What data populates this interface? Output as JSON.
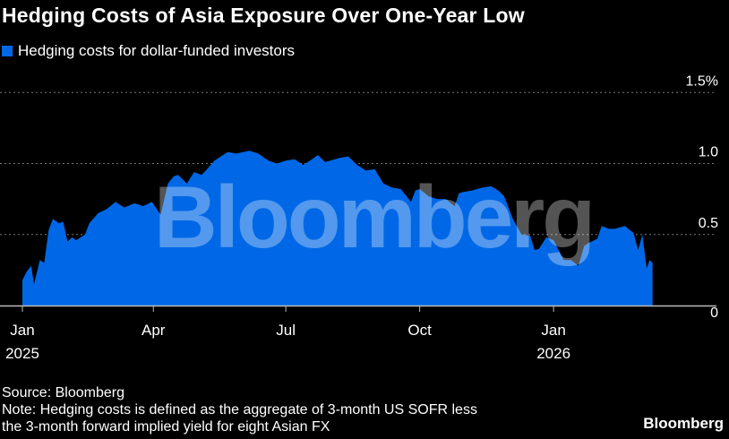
{
  "title": "Hedging Costs of Asia Exposure Over One-Year Low",
  "source": "Source: Bloomberg",
  "note_line1": "Note: Hedging costs is defined as the aggregate of 3-month US SOFR less",
  "note_line2": "the 3-month forward implied yield for eight Asian FX",
  "brand": "Bloomberg",
  "watermark": "Bloomberg",
  "colors": {
    "series": "#0068e6",
    "background": "#000000",
    "text": "#ffffff"
  },
  "chart_data": {
    "type": "area",
    "title": "Hedging Costs of Asia Exposure Over One-Year Low",
    "xlabel": "",
    "ylabel": "",
    "x_unit": "days since 2025-01-01",
    "ylim": [
      0,
      1.5
    ],
    "xlim": [
      0,
      476
    ],
    "grid": true,
    "legend_position": "top-left",
    "y_ticks": [
      {
        "value": 0,
        "label": "0"
      },
      {
        "value": 0.5,
        "label": "0.5"
      },
      {
        "value": 1.0,
        "label": "1.0"
      },
      {
        "value": 1.5,
        "label": "1.5%"
      }
    ],
    "x_ticks": [
      {
        "day": 0,
        "label": "Jan",
        "year": "2025"
      },
      {
        "day": 90,
        "label": "Apr",
        "year": ""
      },
      {
        "day": 181,
        "label": "Jul",
        "year": ""
      },
      {
        "day": 273,
        "label": "Oct",
        "year": ""
      },
      {
        "day": 365,
        "label": "Jan",
        "year": "2026"
      }
    ],
    "series": [
      {
        "name": "Hedging costs for dollar-funded investors",
        "points": [
          [
            0,
            0.18
          ],
          [
            3,
            0.24
          ],
          [
            6,
            0.28
          ],
          [
            8,
            0.15
          ],
          [
            12,
            0.32
          ],
          [
            15,
            0.3
          ],
          [
            18,
            0.53
          ],
          [
            21,
            0.61
          ],
          [
            25,
            0.58
          ],
          [
            28,
            0.59
          ],
          [
            31,
            0.45
          ],
          [
            34,
            0.48
          ],
          [
            37,
            0.46
          ],
          [
            43,
            0.5
          ],
          [
            46,
            0.58
          ],
          [
            52,
            0.65
          ],
          [
            58,
            0.68
          ],
          [
            64,
            0.73
          ],
          [
            70,
            0.69
          ],
          [
            77,
            0.72
          ],
          [
            83,
            0.7
          ],
          [
            89,
            0.73
          ],
          [
            95,
            0.64
          ],
          [
            100,
            0.86
          ],
          [
            104,
            0.91
          ],
          [
            107,
            0.92
          ],
          [
            113,
            0.86
          ],
          [
            118,
            0.94
          ],
          [
            123,
            0.92
          ],
          [
            126,
            0.95
          ],
          [
            132,
            1.02
          ],
          [
            141,
            1.08
          ],
          [
            147,
            1.07
          ],
          [
            156,
            1.09
          ],
          [
            162,
            1.07
          ],
          [
            169,
            1.02
          ],
          [
            175,
            1.0
          ],
          [
            181,
            1.02
          ],
          [
            187,
            1.03
          ],
          [
            193,
            0.99
          ],
          [
            199,
            1.03
          ],
          [
            203,
            1.06
          ],
          [
            208,
            1.01
          ],
          [
            218,
            1.04
          ],
          [
            224,
            1.05
          ],
          [
            230,
            0.99
          ],
          [
            236,
            0.95
          ],
          [
            242,
            0.96
          ],
          [
            248,
            0.86
          ],
          [
            254,
            0.83
          ],
          [
            260,
            0.82
          ],
          [
            267,
            0.73
          ],
          [
            270,
            0.81
          ],
          [
            273,
            0.82
          ],
          [
            279,
            0.77
          ],
          [
            285,
            0.75
          ],
          [
            291,
            0.75
          ],
          [
            297,
            0.7
          ],
          [
            300,
            0.79
          ],
          [
            303,
            0.8
          ],
          [
            309,
            0.81
          ],
          [
            316,
            0.83
          ],
          [
            322,
            0.84
          ],
          [
            327,
            0.81
          ],
          [
            331,
            0.77
          ],
          [
            337,
            0.61
          ],
          [
            343,
            0.5
          ],
          [
            349,
            0.49
          ],
          [
            352,
            0.39
          ],
          [
            355,
            0.4
          ],
          [
            360,
            0.48
          ],
          [
            365,
            0.46
          ],
          [
            368,
            0.4
          ],
          [
            372,
            0.32
          ],
          [
            377,
            0.32
          ],
          [
            382,
            0.28
          ],
          [
            386,
            0.42
          ],
          [
            389,
            0.44
          ],
          [
            395,
            0.47
          ],
          [
            398,
            0.56
          ],
          [
            403,
            0.54
          ],
          [
            407,
            0.54
          ],
          [
            414,
            0.56
          ],
          [
            420,
            0.51
          ],
          [
            423,
            0.39
          ],
          [
            426,
            0.5
          ],
          [
            429,
            0.26
          ],
          [
            431,
            0.32
          ],
          [
            433,
            0.3
          ]
        ]
      }
    ]
  }
}
